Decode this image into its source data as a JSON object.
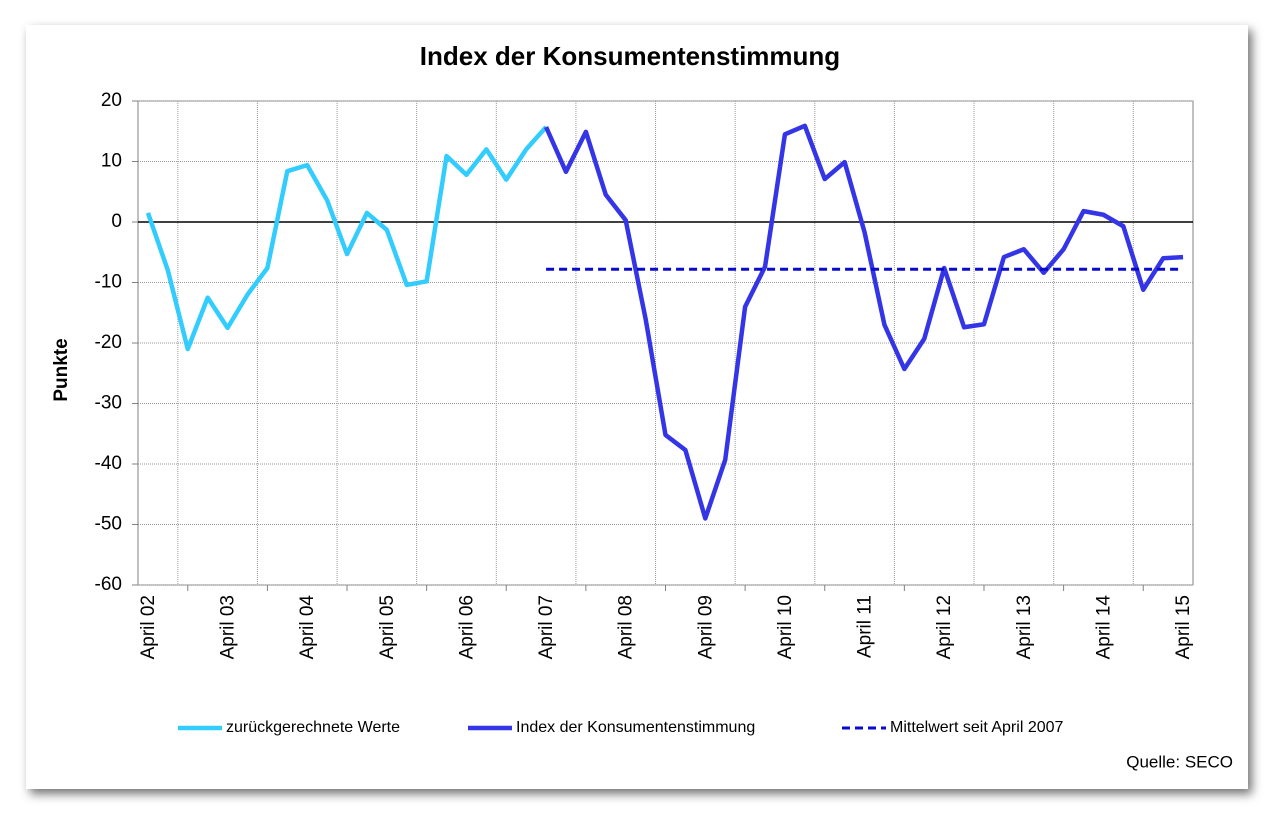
{
  "chart_data": {
    "type": "line",
    "title": "Index der Konsumentenstimmung",
    "y_label": "Punkte",
    "source": "Quelle: SECO",
    "categories": [
      "April 02",
      null,
      null,
      null,
      "April 03",
      null,
      null,
      null,
      "April 04",
      null,
      null,
      null,
      "April 05",
      null,
      null,
      null,
      "April 06",
      null,
      null,
      null,
      "April 07",
      null,
      null,
      null,
      "April 08",
      null,
      null,
      null,
      "April 09",
      null,
      null,
      null,
      "April 10",
      null,
      null,
      null,
      "April 11",
      null,
      null,
      null,
      "April 12",
      null,
      null,
      null,
      "April 13",
      null,
      null,
      null,
      "April 14",
      null,
      null,
      null,
      "April 15"
    ],
    "series": [
      {
        "name": "zurückgerechnete Werte",
        "color": "#33ccff",
        "style": "solid",
        "values": [
          1.5,
          -8,
          -21,
          -12.5,
          -17.5,
          -12,
          -7.6,
          8.4,
          9.4,
          3.6,
          -5.3,
          1.5,
          -1.3,
          -10.4,
          -9.8,
          10.9,
          7.8,
          12,
          7,
          12,
          15.7,
          null,
          null,
          null,
          null,
          null,
          null,
          null,
          null,
          null,
          null,
          null,
          null,
          null,
          null,
          null,
          null,
          null,
          null,
          null,
          null,
          null,
          null,
          null,
          null,
          null,
          null,
          null,
          null,
          null,
          null,
          null,
          null
        ]
      },
      {
        "name": "Index der Konsumentenstimmung",
        "color": "#3535e8",
        "style": "solid",
        "values": [
          null,
          null,
          null,
          null,
          null,
          null,
          null,
          null,
          null,
          null,
          null,
          null,
          null,
          null,
          null,
          null,
          null,
          null,
          null,
          null,
          15.7,
          8.3,
          14.9,
          4.5,
          0.3,
          -16,
          -35.2,
          -37.7,
          -49,
          -39.3,
          -14,
          -7.4,
          14.5,
          15.9,
          7.1,
          9.9,
          -1.7,
          -17,
          -24.3,
          -19.3,
          -7.6,
          -17.4,
          -16.9,
          -5.8,
          -4.5,
          -8.4,
          -4.5,
          1.8,
          1.2,
          -0.7,
          -11.2,
          -6,
          -5.8
        ]
      },
      {
        "name": "Mittelwert seit April 2007",
        "color": "#0a0acc",
        "style": "dashed",
        "values": [
          null,
          null,
          null,
          null,
          null,
          null,
          null,
          null,
          null,
          null,
          null,
          null,
          null,
          null,
          null,
          null,
          null,
          null,
          null,
          null,
          -7.8,
          -7.8,
          -7.8,
          -7.8,
          -7.8,
          -7.8,
          -7.8,
          -7.8,
          -7.8,
          -7.8,
          -7.8,
          -7.8,
          -7.8,
          -7.8,
          -7.8,
          -7.8,
          -7.8,
          -7.8,
          -7.8,
          -7.8,
          -7.8,
          -7.8,
          -7.8,
          -7.8,
          -7.8,
          -7.8,
          -7.8,
          -7.8,
          -7.8,
          -7.8,
          -7.8,
          -7.8,
          -7.8
        ]
      }
    ],
    "ylim": [
      -60,
      20
    ],
    "yticks": [
      -60,
      -50,
      -40,
      -30,
      -20,
      -10,
      0,
      10,
      20
    ],
    "grid": true,
    "legend": "bottom"
  }
}
